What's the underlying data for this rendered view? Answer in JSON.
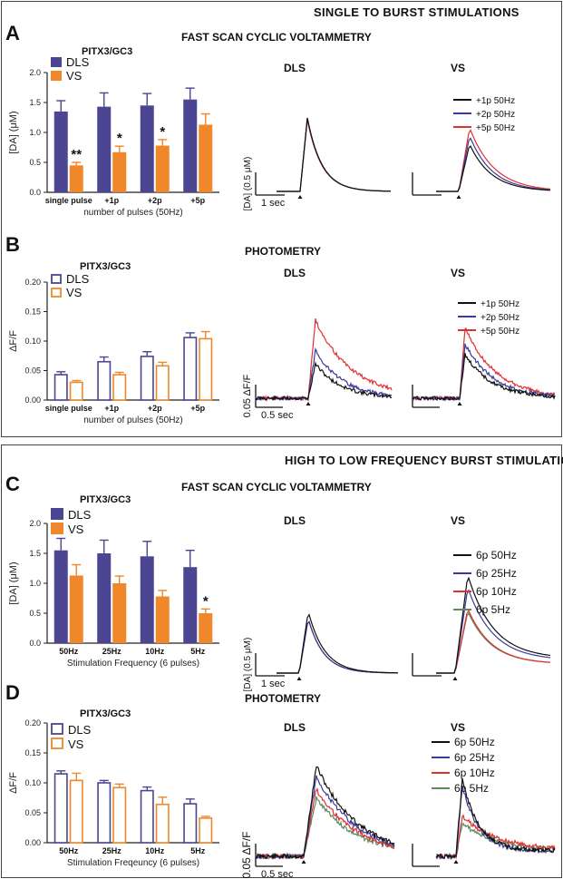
{
  "section1": {
    "title": "SINGLE TO BURST STIMULATIONS"
  },
  "section2": {
    "title": "HIGH TO LOW FREQUENCY BURST STIMULATIONS"
  },
  "colors": {
    "dls": "#4b4592",
    "vs": "#f0872a",
    "black": "#111111",
    "blue": "#3a3a9a",
    "red": "#e03030",
    "green": "#5c8a5c"
  },
  "panels": {
    "A": {
      "letter": "A",
      "method": "FAST SCAN CYCLIC VOLTAMMETRY",
      "sub": "PITX3/GC3",
      "trace_dls": "DLS",
      "trace_vs": "VS",
      "ylabel": "[DA] (0.5 μM)",
      "xscale": "1 sec",
      "legend": [
        "+1p 50Hz",
        "+2p 50Hz",
        "+5p 50Hz"
      ]
    },
    "B": {
      "letter": "B",
      "method": "PHOTOMETRY",
      "sub": "PITX3/GC3",
      "trace_dls": "DLS",
      "trace_vs": "VS",
      "ylabel": "0.05 ΔF/F",
      "xscale": "0.5 sec",
      "legend": [
        "+1p 50Hz",
        "+2p 50Hz",
        "+5p 50Hz"
      ]
    },
    "C": {
      "letter": "C",
      "method": "FAST SCAN CYCLIC VOLTAMMETRY",
      "sub": "PITX3/GC3",
      "trace_dls": "DLS",
      "trace_vs": "VS",
      "ylabel": "[DA] (0.5 μM)",
      "xscale": "1 sec",
      "legend": [
        "6p 50Hz",
        "6p 25Hz",
        "6p 10Hz",
        "6p 5Hz"
      ]
    },
    "D": {
      "letter": "D",
      "method": "PHOTOMETRY",
      "sub": "PITX3/GC3",
      "trace_dls": "DLS",
      "trace_vs": "VS",
      "ylabel": "0.05 ΔF/F",
      "xscale": "0.5 sec",
      "legend": [
        "6p 50Hz",
        "6p 25Hz",
        "6p 10Hz",
        "6p 5Hz"
      ]
    }
  },
  "chart_data": [
    {
      "id": "A",
      "type": "bar",
      "title": "PITX3/GC3",
      "categories": [
        "single pulse",
        "+1p",
        "+2p",
        "+5p"
      ],
      "xlabel": "number of pulses (50Hz)",
      "ylabel": "[DA] (μM)",
      "ylim": [
        0,
        2.0
      ],
      "yticks": [
        "0.0",
        "0.5",
        "1.0",
        "1.5",
        "2.0"
      ],
      "style": "filled",
      "series": [
        {
          "name": "DLS",
          "values": [
            1.35,
            1.43,
            1.45,
            1.55
          ],
          "errors": [
            0.18,
            0.23,
            0.2,
            0.19
          ]
        },
        {
          "name": "VS",
          "values": [
            0.45,
            0.67,
            0.78,
            1.13
          ],
          "errors": [
            0.05,
            0.1,
            0.1,
            0.18
          ]
        }
      ],
      "annotations": [
        "**",
        "*",
        "*",
        ""
      ]
    },
    {
      "id": "B",
      "type": "bar",
      "title": "PITX3/GC3",
      "categories": [
        "single pulse",
        "+1p",
        "+2p",
        "+5p"
      ],
      "xlabel": "number of pulses (50Hz)",
      "ylabel": "ΔF/F",
      "ylim": [
        0,
        0.2
      ],
      "yticks": [
        "0.00",
        "0.05",
        "0.10",
        "0.15",
        "0.20"
      ],
      "style": "open",
      "series": [
        {
          "name": "DLS",
          "values": [
            0.043,
            0.065,
            0.074,
            0.106
          ],
          "errors": [
            0.005,
            0.008,
            0.008,
            0.008
          ]
        },
        {
          "name": "VS",
          "values": [
            0.03,
            0.043,
            0.058,
            0.104
          ],
          "errors": [
            0.003,
            0.004,
            0.006,
            0.012
          ]
        }
      ],
      "annotations": [
        "",
        "",
        "",
        ""
      ]
    },
    {
      "id": "C",
      "type": "bar",
      "title": "PITX3/GC3",
      "categories": [
        "50Hz",
        "25Hz",
        "10Hz",
        "5Hz"
      ],
      "xlabel": "Stimulation Frequency (6 pulses)",
      "ylabel": "[DA] (μM)",
      "ylim": [
        0,
        2.0
      ],
      "yticks": [
        "0.0",
        "0.5",
        "1.0",
        "1.5",
        "2.0"
      ],
      "style": "filled",
      "series": [
        {
          "name": "DLS",
          "values": [
            1.55,
            1.5,
            1.45,
            1.27
          ],
          "errors": [
            0.2,
            0.22,
            0.25,
            0.28
          ]
        },
        {
          "name": "VS",
          "values": [
            1.13,
            1.0,
            0.78,
            0.5
          ],
          "errors": [
            0.18,
            0.12,
            0.1,
            0.07
          ]
        }
      ],
      "annotations": [
        "",
        "",
        "",
        "*"
      ]
    },
    {
      "id": "D",
      "type": "bar",
      "title": "PITX3/GC3",
      "categories": [
        "50Hz",
        "25Hz",
        "10Hz",
        "5Hz"
      ],
      "xlabel": "Stimulation Freqeuncy (6 pulses)",
      "ylabel": "ΔF/F",
      "ylim": [
        0,
        0.2
      ],
      "yticks": [
        "0.00",
        "0.05",
        "0.10",
        "0.15",
        "0.20"
      ],
      "style": "open",
      "series": [
        {
          "name": "DLS",
          "values": [
            0.115,
            0.1,
            0.087,
            0.065
          ],
          "errors": [
            0.005,
            0.004,
            0.006,
            0.008
          ]
        },
        {
          "name": "VS",
          "values": [
            0.104,
            0.092,
            0.064,
            0.041
          ],
          "errors": [
            0.012,
            0.006,
            0.012,
            0.003
          ]
        }
      ],
      "annotations": [
        "",
        "",
        "",
        ""
      ]
    }
  ]
}
